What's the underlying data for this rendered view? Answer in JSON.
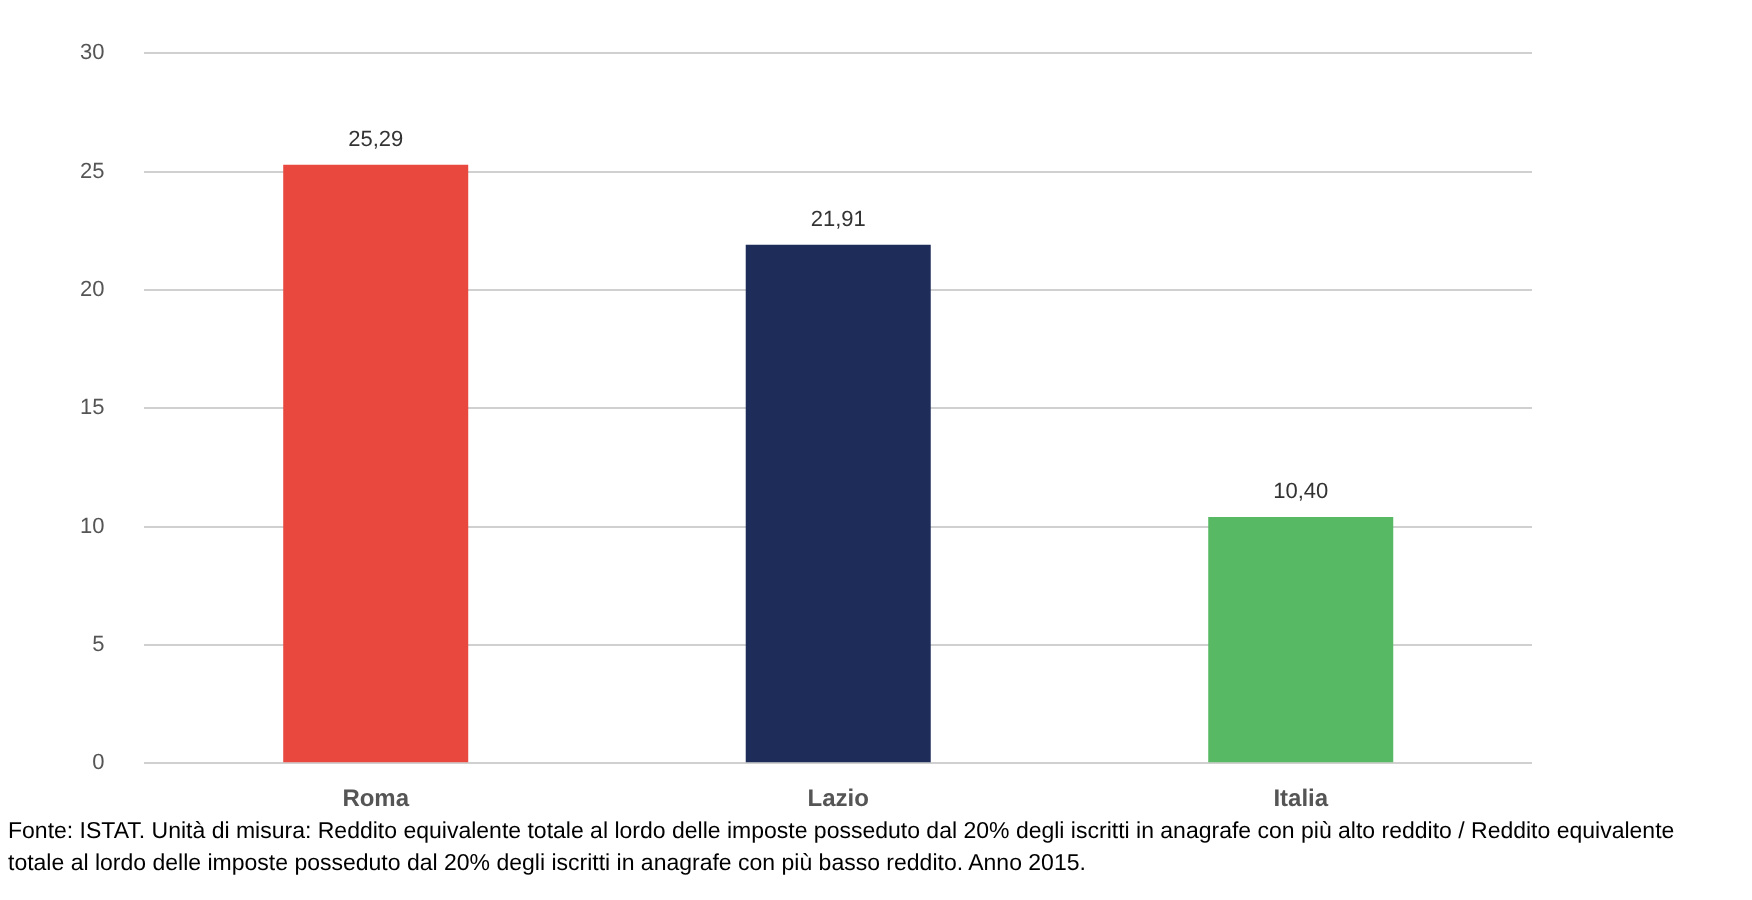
{
  "chart_data": {
    "type": "bar",
    "categories": [
      "Roma",
      "Lazio",
      "Italia"
    ],
    "values": [
      25.29,
      21.91,
      10.4
    ],
    "colors": [
      "#e8483d",
      "#1d2c58",
      "#57b964"
    ],
    "value_labels": [
      "25,29",
      "21,91",
      "10,40"
    ],
    "ylim": [
      0,
      30
    ],
    "yticks": [
      0,
      5,
      10,
      15,
      20,
      25,
      30
    ],
    "grid": "y",
    "annotations": [
      "Fonte: ISTAT. Unità di misura: Reddito equivalente totale al lordo delle imposte posseduto dal 20% degli iscritti in anagrafe con più alto reddito / Reddito equivalente totale al lordo delle imposte posseduto dal 20% degli iscritti in anagrafe con più basso reddito. Anno 2015."
    ]
  }
}
